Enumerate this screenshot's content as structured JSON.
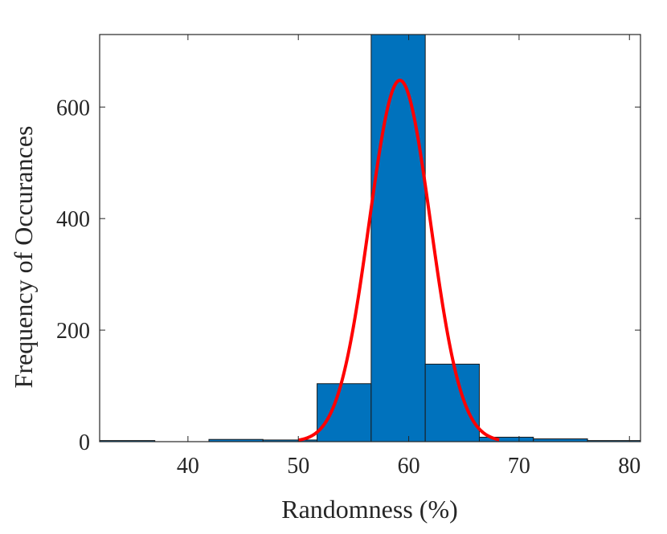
{
  "chart_data": {
    "type": "bar",
    "title": "",
    "xlabel": "Randomness (%)",
    "ylabel": "Frequency of Occurances",
    "xlim": [
      32,
      81
    ],
    "ylim": [
      0,
      730
    ],
    "xticks": [
      40,
      50,
      60,
      70,
      80
    ],
    "yticks": [
      0,
      200,
      400,
      600
    ],
    "grid": false,
    "legend": "none",
    "bar_color": "#0072BD",
    "bar_edge_color": "#1a1a1a",
    "bins": [
      {
        "x0": 32.0,
        "x1": 37.0,
        "count": 2
      },
      {
        "x0": 37.0,
        "x1": 41.9,
        "count": 0
      },
      {
        "x0": 41.9,
        "x1": 46.8,
        "count": 4
      },
      {
        "x0": 46.8,
        "x1": 51.7,
        "count": 3
      },
      {
        "x0": 51.7,
        "x1": 56.6,
        "count": 104
      },
      {
        "x0": 56.6,
        "x1": 61.5,
        "count": 730
      },
      {
        "x0": 61.5,
        "x1": 66.4,
        "count": 139
      },
      {
        "x0": 66.4,
        "x1": 71.3,
        "count": 8
      },
      {
        "x0": 71.3,
        "x1": 76.2,
        "count": 5
      },
      {
        "x0": 76.2,
        "x1": 81.0,
        "count": 2
      }
    ],
    "fit_curve": {
      "type": "gaussian",
      "color": "#ff0000",
      "peak": 648,
      "mean": 59.2,
      "std": 2.78,
      "x_range": [
        50.0,
        68.2
      ]
    }
  }
}
